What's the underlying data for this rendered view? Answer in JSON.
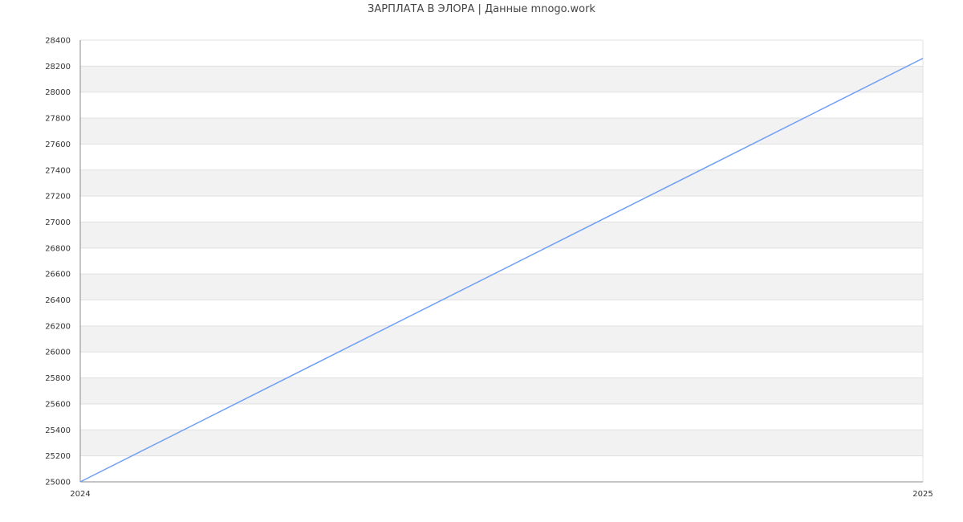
{
  "chart_data": {
    "type": "line",
    "title": "ЗАРПЛАТА В  ЭЛОРА | Данные mnogo.work",
    "x": [
      "2024",
      "2025"
    ],
    "series": [
      {
        "values": [
          25000,
          28260
        ]
      }
    ],
    "ylim": [
      25000,
      28400
    ],
    "yticks": [
      25000,
      25200,
      25400,
      25600,
      25800,
      26000,
      26200,
      26400,
      26600,
      26800,
      27000,
      27200,
      27400,
      27600,
      27800,
      28000,
      28200,
      28400
    ],
    "xlabel": "",
    "ylabel": "",
    "grid": true,
    "banded_background": true,
    "colors": {
      "line": "#6f9ef5",
      "band": "#f2f2f2",
      "grid": "#e0e0e0",
      "axis": "#888888"
    }
  }
}
